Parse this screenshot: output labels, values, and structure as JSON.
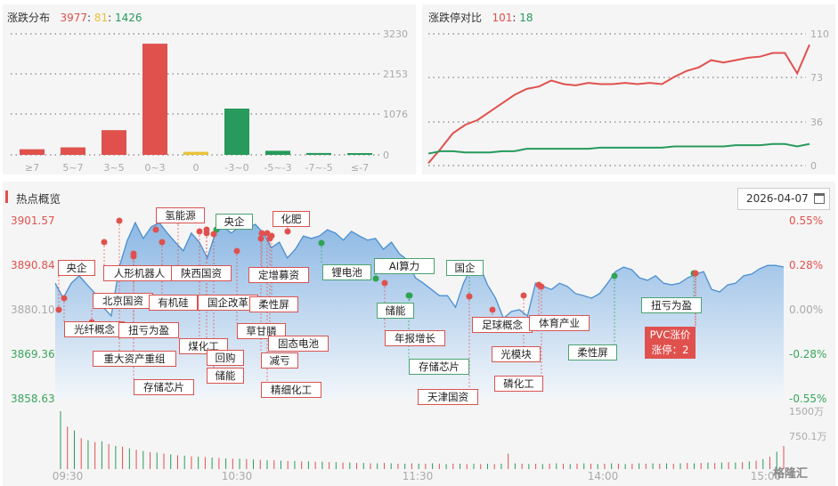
{
  "distribution": {
    "title": "涨跌分布",
    "up": "3977",
    "flat": "81",
    "down": "1426"
  },
  "limit": {
    "title": "涨跌停对比",
    "up": "101",
    "down": "18"
  },
  "hot": {
    "title": "热点概览",
    "date": "2026-04-07",
    "icon": "calendar-icon"
  },
  "colors": {
    "up": "#e0514e",
    "down": "#279a5c",
    "flat": "#e8c23a",
    "area": "#7fb0e0"
  },
  "chart_data": [
    {
      "type": "bar",
      "title": "涨跌分布",
      "categories": [
        "≥7",
        "5~7",
        "3~5",
        "0~3",
        "0",
        "-3~0",
        "-5~-3",
        "-7~-5",
        "≤-7"
      ],
      "values": [
        150,
        200,
        660,
        2967,
        81,
        1235,
        110,
        50,
        31
      ],
      "bar_colors": [
        "up",
        "up",
        "up",
        "up",
        "flat",
        "down",
        "down",
        "down",
        "down"
      ],
      "yticks": [
        "3230",
        "2153",
        "1076",
        "0"
      ],
      "ylim": [
        0,
        3230
      ],
      "grid": true
    },
    {
      "type": "line",
      "title": "涨跌停对比",
      "yticks": [
        "110",
        "73",
        "36",
        "0"
      ],
      "ylim": [
        0,
        110
      ],
      "grid": true,
      "series": [
        {
          "color": "up",
          "values": [
            2,
            14,
            27,
            34,
            38,
            45,
            52,
            59,
            64,
            66,
            71,
            68,
            67,
            69,
            68,
            68,
            69,
            68,
            69,
            68,
            74,
            79,
            82,
            88,
            86,
            88,
            90,
            91,
            94,
            94,
            77,
            101
          ]
        },
        {
          "color": "down",
          "values": [
            10,
            12,
            12,
            11,
            11,
            11,
            12,
            12,
            14,
            14,
            14,
            14,
            14,
            14,
            15,
            15,
            15,
            15,
            15,
            15,
            16,
            16,
            16,
            16,
            16,
            17,
            17,
            17,
            18,
            18,
            16,
            18
          ]
        }
      ]
    },
    {
      "type": "area",
      "title": "热点概览",
      "yticks_left": [
        "3901.57",
        "3890.84",
        "3880.10",
        "3869.36",
        "3858.63"
      ],
      "yticks_right": [
        "0.55%",
        "0.28%",
        "0.00%",
        "-0.28%",
        "-0.55%"
      ],
      "ylim": [
        3858.63,
        3901.57
      ],
      "xticks": [
        "09:30",
        "10:30",
        "11:30",
        "14:00",
        "15:00"
      ],
      "values": [
        3886.5,
        3882.9,
        3886.5,
        3888.3,
        3886.1,
        3884.0,
        3880.7,
        3878.6,
        3890.4,
        3896.8,
        3901.1,
        3897.3,
        3900.1,
        3901.1,
        3898.6,
        3896.4,
        3894.3,
        3898.6,
        3896.4,
        3892.6,
        3898.6,
        3900.1,
        3898.6,
        3900.1,
        3899.9,
        3900.7,
        3898.6,
        3895.1,
        3896.4,
        3892.6,
        3894.7,
        3897.9,
        3897.3,
        3897.9,
        3899.4,
        3898.6,
        3896.9,
        3899.0,
        3897.9,
        3896.9,
        3897.3,
        3894.7,
        3896.4,
        3893.6,
        3892.1,
        3887.8,
        3886.5,
        3885.0,
        3883.5,
        3883.5,
        3880.7,
        3886.5,
        3890.4,
        3890.8,
        3886.1,
        3882.9,
        3878.0,
        3879.7,
        3880.1,
        3878.6,
        3886.5,
        3885.7,
        3885.0,
        3886.5,
        3885.7,
        3884.0,
        3883.5,
        3882.9,
        3884.0,
        3886.5,
        3889.3,
        3890.4,
        3889.8,
        3887.8,
        3887.2,
        3888.3,
        3886.5,
        3886.1,
        3886.5,
        3887.8,
        3888.7,
        3889.3,
        3885.0,
        3884.4,
        3886.1,
        3886.5,
        3888.3,
        3888.7,
        3890.0,
        3890.8,
        3890.8,
        3890.4
      ]
    },
    {
      "type": "bar",
      "title": "",
      "yticks": [
        "1500万",
        "750.1万"
      ],
      "ylim": [
        0,
        1500
      ],
      "values": [
        1500,
        1100,
        1000,
        800,
        750,
        700,
        720,
        650,
        600,
        580,
        540,
        500,
        470,
        440,
        430,
        400,
        380,
        360,
        350,
        330,
        320,
        310,
        300,
        290,
        280,
        270,
        270,
        260,
        250,
        240,
        230,
        230,
        220,
        210,
        210,
        200,
        200,
        190,
        190,
        180,
        180,
        170,
        170,
        160,
        160,
        150,
        150,
        160,
        150,
        140,
        140,
        150,
        140,
        140,
        150,
        140,
        130,
        140,
        140,
        130,
        140,
        130,
        140,
        130,
        140,
        400,
        150,
        140,
        130,
        140,
        130,
        140,
        150,
        140,
        130,
        140,
        150,
        140,
        130,
        140,
        150,
        140,
        130,
        140,
        150,
        140,
        150,
        140,
        150,
        140,
        150,
        160,
        150,
        160,
        170,
        160,
        170,
        180,
        170,
        180,
        200,
        220,
        260,
        320,
        450,
        600
      ],
      "bar_colors": [
        "down",
        "up"
      ]
    }
  ],
  "tags": [
    {
      "t": "央企",
      "k": "up"
    },
    {
      "t": "光纤概念",
      "k": "up"
    },
    {
      "t": "人形机器人",
      "k": "up"
    },
    {
      "t": "北京国资",
      "k": "up"
    },
    {
      "t": "氢能源",
      "k": "up"
    },
    {
      "t": "央企",
      "k": "down"
    },
    {
      "t": "化肥",
      "k": "up"
    },
    {
      "t": "陕西国资",
      "k": "up"
    },
    {
      "t": "定增募资",
      "k": "up"
    },
    {
      "t": "锂电池",
      "k": "down"
    },
    {
      "t": "AI算力",
      "k": "down"
    },
    {
      "t": "国企",
      "k": "down"
    },
    {
      "t": "有机硅",
      "k": "up"
    },
    {
      "t": "国企改革",
      "k": "up"
    },
    {
      "t": "柔性屏",
      "k": "up"
    },
    {
      "t": "扭亏为盈",
      "k": "up"
    },
    {
      "t": "草甘膦",
      "k": "up"
    },
    {
      "t": "固态电池",
      "k": "up"
    },
    {
      "t": "煤化工",
      "k": "up"
    },
    {
      "t": "重大资产重组",
      "k": "up"
    },
    {
      "t": "回购",
      "k": "up"
    },
    {
      "t": "减亏",
      "k": "up"
    },
    {
      "t": "储能",
      "k": "up"
    },
    {
      "t": "存储芯片",
      "k": "up"
    },
    {
      "t": "精细化工",
      "k": "up"
    },
    {
      "t": "储能",
      "k": "down"
    },
    {
      "t": "年报增长",
      "k": "up"
    },
    {
      "t": "存储芯片",
      "k": "down"
    },
    {
      "t": "天津国资",
      "k": "up"
    },
    {
      "t": "足球概念",
      "k": "up"
    },
    {
      "t": "体育产业",
      "k": "up"
    },
    {
      "t": "光模块",
      "k": "up"
    },
    {
      "t": "磷化工",
      "k": "up"
    },
    {
      "t": "柔性屏",
      "k": "down"
    },
    {
      "t": "扭亏为盈",
      "k": "down"
    }
  ],
  "highlight": {
    "line1": "PVC涨价",
    "line2": "涨停：2"
  },
  "watermark": "格隆汇"
}
